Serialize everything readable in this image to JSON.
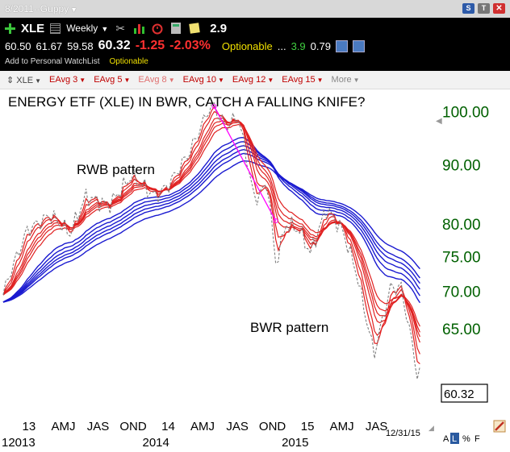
{
  "window": {
    "title": "8/2011--Guppy",
    "btn_s": "S",
    "btn_t": "T",
    "btn_x": "✕"
  },
  "toolbar": {
    "symbol": "XLE",
    "period": "Weekly",
    "score": "2.9",
    "icons": [
      "plus-icon",
      "grid-icon",
      "tools-icon",
      "bar-chart-icon",
      "alarm-icon",
      "calculator-icon",
      "note-icon"
    ],
    "quote": {
      "open": "60.50",
      "high": "61.67",
      "low": "59.58",
      "last": "60.32",
      "change": "-1.25",
      "change_pct": "-2.03%",
      "optionable": "Optionable",
      "ellipsis": "...",
      "green_value": "3.9",
      "white_value": "0.79"
    },
    "add_watchlist": "Add to Personal WatchList",
    "optionable_small": "Optionable"
  },
  "indicators": {
    "symbol": "XLE",
    "items": [
      "EAvg 3",
      "EAvg 5",
      "EAvg 8",
      "EAvg 10",
      "EAvg 12",
      "EAvg 15"
    ],
    "more": "More"
  },
  "colors": {
    "short_ema": "#e02020",
    "long_ema": "#1a1ad0",
    "price": "#808080",
    "axis_text": "#006000",
    "connector": "#ff00ff"
  },
  "chart_data": {
    "type": "line",
    "title": "ENERGY ETF (XLE) IN BWR, CATCH A FALLING KNIFE?",
    "annotations": [
      "RWB pattern",
      "BWR pattern"
    ],
    "x_period_labels": [
      "13",
      "AMJ",
      "JAS",
      "OND",
      "14",
      "AMJ",
      "JAS",
      "OND",
      "15",
      "AMJ",
      "JAS"
    ],
    "x_year_labels": [
      "12013",
      "2014",
      "2015"
    ],
    "end_date_label": "12/31/15",
    "scale_labels": [
      "A",
      "L",
      "%",
      "F"
    ],
    "y_ticks": [
      {
        "v": 100,
        "label": "100.00"
      },
      {
        "v": 90,
        "label": "90.00"
      },
      {
        "v": 80,
        "label": "80.00"
      },
      {
        "v": 75,
        "label": "75.00"
      },
      {
        "v": 70,
        "label": "70.00"
      },
      {
        "v": 65,
        "label": "65.00"
      }
    ],
    "last_price_label": "60.32",
    "ylim": [
      57,
      103
    ],
    "log_scale": true,
    "x_range": [
      "2012-12-28",
      "2016-01-08"
    ],
    "price_keypoints": [
      [
        "2012-12-28",
        69.5
      ],
      [
        "2013-01-11",
        72.0
      ],
      [
        "2013-03-01",
        79.0
      ],
      [
        "2013-05-01",
        81.5
      ],
      [
        "2013-06-21",
        78.5
      ],
      [
        "2013-08-01",
        84.5
      ],
      [
        "2013-10-01",
        83.0
      ],
      [
        "2013-11-29",
        88.0
      ],
      [
        "2014-01-31",
        84.5
      ],
      [
        "2014-03-07",
        86.5
      ],
      [
        "2014-05-02",
        92.5
      ],
      [
        "2014-06-20",
        100.5
      ],
      [
        "2014-07-04",
        101.0
      ],
      [
        "2014-08-01",
        97.0
      ],
      [
        "2014-09-05",
        99.0
      ],
      [
        "2014-10-03",
        89.0
      ],
      [
        "2014-10-17",
        84.0
      ],
      [
        "2014-11-21",
        86.5
      ],
      [
        "2014-12-12",
        74.0
      ],
      [
        "2015-01-09",
        80.0
      ],
      [
        "2015-02-13",
        79.0
      ],
      [
        "2015-03-13",
        75.5
      ],
      [
        "2015-04-24",
        82.5
      ],
      [
        "2015-06-05",
        79.0
      ],
      [
        "2015-07-10",
        73.0
      ],
      [
        "2015-08-21",
        63.0
      ],
      [
        "2015-08-28",
        62.0
      ],
      [
        "2015-10-09",
        70.5
      ],
      [
        "2015-11-06",
        70.5
      ],
      [
        "2015-12-11",
        61.5
      ],
      [
        "2015-12-18",
        59.0
      ],
      [
        "2015-12-31",
        60.32
      ]
    ],
    "series": [
      {
        "name": "EAvg 3",
        "period": 3,
        "group": "short"
      },
      {
        "name": "EAvg 5",
        "period": 5,
        "group": "short"
      },
      {
        "name": "EAvg 8",
        "period": 8,
        "group": "short"
      },
      {
        "name": "EAvg 10",
        "period": 10,
        "group": "short"
      },
      {
        "name": "EAvg 12",
        "period": 12,
        "group": "short"
      },
      {
        "name": "EAvg 15",
        "period": 15,
        "group": "short"
      },
      {
        "name": "EAvg 30",
        "period": 30,
        "group": "long"
      },
      {
        "name": "EAvg 35",
        "period": 35,
        "group": "long"
      },
      {
        "name": "EAvg 40",
        "period": 40,
        "group": "long"
      },
      {
        "name": "EAvg 45",
        "period": 45,
        "group": "long"
      },
      {
        "name": "EAvg 50",
        "period": 50,
        "group": "long"
      },
      {
        "name": "EAvg 60",
        "period": 60,
        "group": "long"
      }
    ],
    "connector": {
      "from": [
        "2014-07-04",
        101.0
      ],
      "to": [
        "2014-12-12",
        80.5
      ]
    }
  }
}
